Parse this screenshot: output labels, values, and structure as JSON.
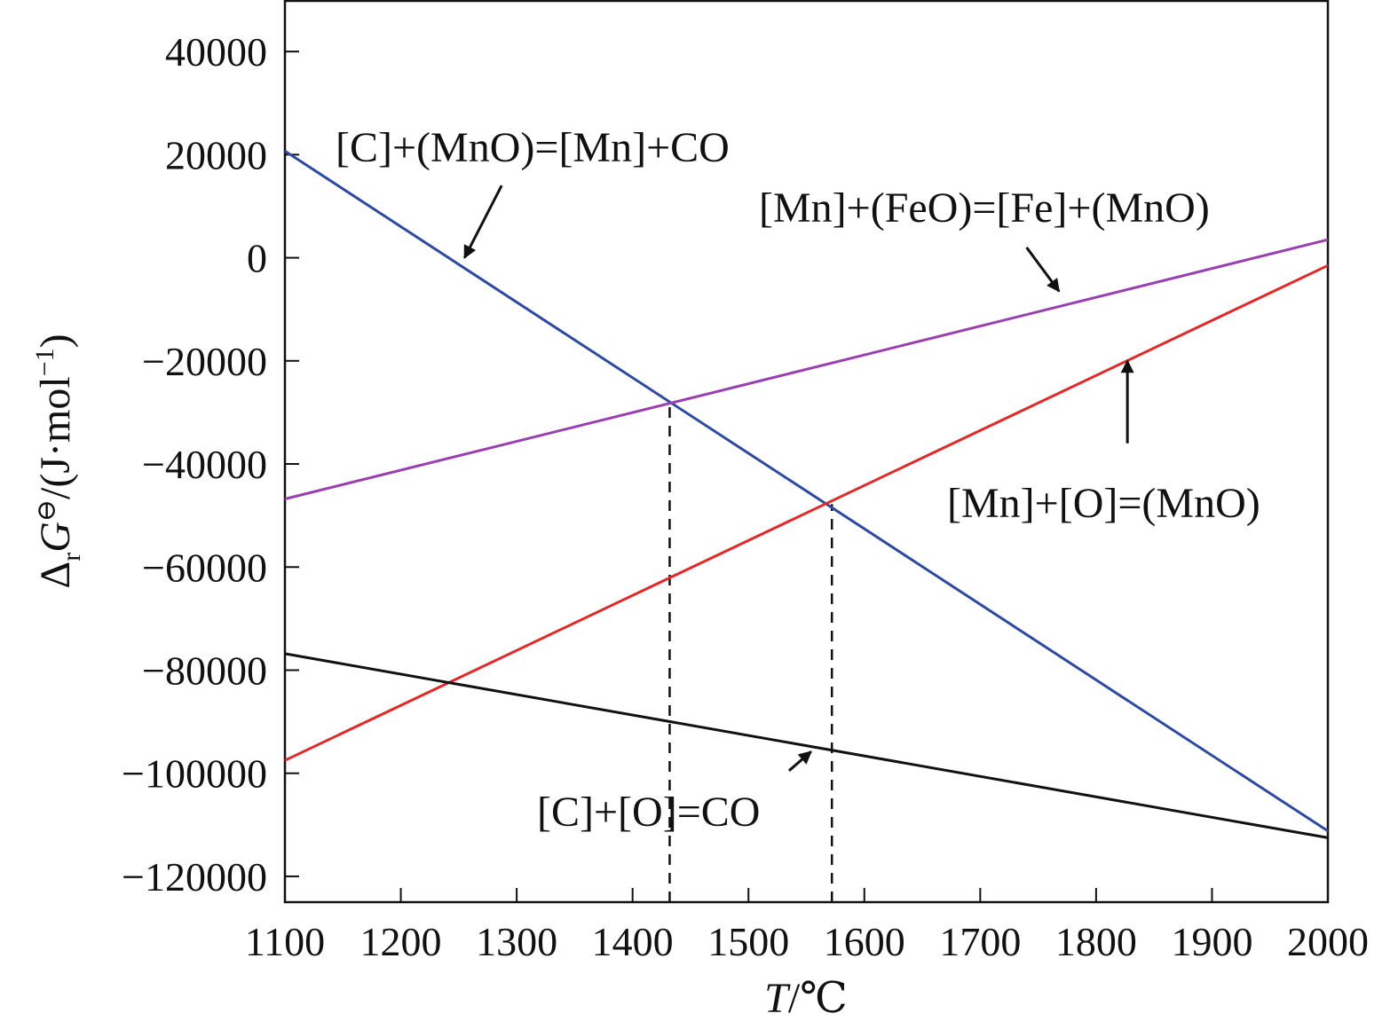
{
  "chart_data": {
    "type": "line",
    "title": "",
    "xlabel": {
      "main": "T",
      "rest": "/℃"
    },
    "ylabel": {
      "delta": "Δ",
      "sub": "r",
      "mid": "G",
      "sup": "⊖",
      "rest": "/(J·mol",
      "exp": "−1",
      "close": ")"
    },
    "xlim": [
      1100,
      2000
    ],
    "ylim": [
      -125000,
      50000
    ],
    "x_ticks": [
      1100,
      1200,
      1300,
      1400,
      1500,
      1600,
      1700,
      1800,
      1900,
      2000
    ],
    "x_tick_labels": [
      "1100",
      "1200",
      "1300",
      "1400",
      "1500",
      "1600",
      "1700",
      "1800",
      "1900",
      "2000"
    ],
    "y_ticks": [
      40000,
      20000,
      0,
      -20000,
      -40000,
      -60000,
      -80000,
      -100000,
      -120000
    ],
    "y_tick_labels": [
      "40000",
      "20000",
      "0",
      "−20000",
      "−40000",
      "−60000",
      "−80000",
      "−100000",
      "−120000"
    ],
    "grid": false,
    "colors": {
      "c_mno": "#2e4a9e",
      "mn_feo": "#9a3fb0",
      "mn_o": "#e02a2a",
      "c_o": "#111111"
    },
    "series": [
      {
        "id": "c_mno",
        "x": [
          1100,
          2000
        ],
        "y": [
          20700,
          -111200
        ]
      },
      {
        "id": "mn_feo",
        "x": [
          1100,
          2000
        ],
        "y": [
          -46800,
          3500
        ]
      },
      {
        "id": "mn_o",
        "x": [
          1100,
          2000
        ],
        "y": [
          -97500,
          -1500
        ]
      },
      {
        "id": "c_o",
        "x": [
          1100,
          2000
        ],
        "y": [
          -76800,
          -112500
        ]
      }
    ],
    "reference_lines": [
      {
        "x": 1432,
        "y_from": -125000,
        "y_to": -28200
      },
      {
        "x": 1572,
        "y_from": -125000,
        "y_to": -47800
      }
    ],
    "annotations": [
      {
        "id": "c_mno",
        "text": "[C]+(MnO)=[Mn]+CO",
        "arrow_from": [
          1287,
          14000
        ],
        "arrow_to": [
          1255,
          0
        ]
      },
      {
        "id": "mn_feo",
        "text": "[Mn]+(FeO)=[Fe]+(MnO)",
        "arrow_from": [
          1740,
          2000
        ],
        "arrow_to": [
          1768,
          -6500
        ]
      },
      {
        "id": "mn_o",
        "text": "[Mn]+[O]=(MnO)",
        "arrow_from": [
          1827,
          -36000
        ],
        "arrow_to": [
          1827,
          -20000
        ]
      },
      {
        "id": "c_o",
        "text": "[C]+[O]=CO",
        "arrow_from": [
          1535,
          -99500
        ],
        "arrow_to": [
          1554,
          -95800
        ]
      }
    ]
  }
}
